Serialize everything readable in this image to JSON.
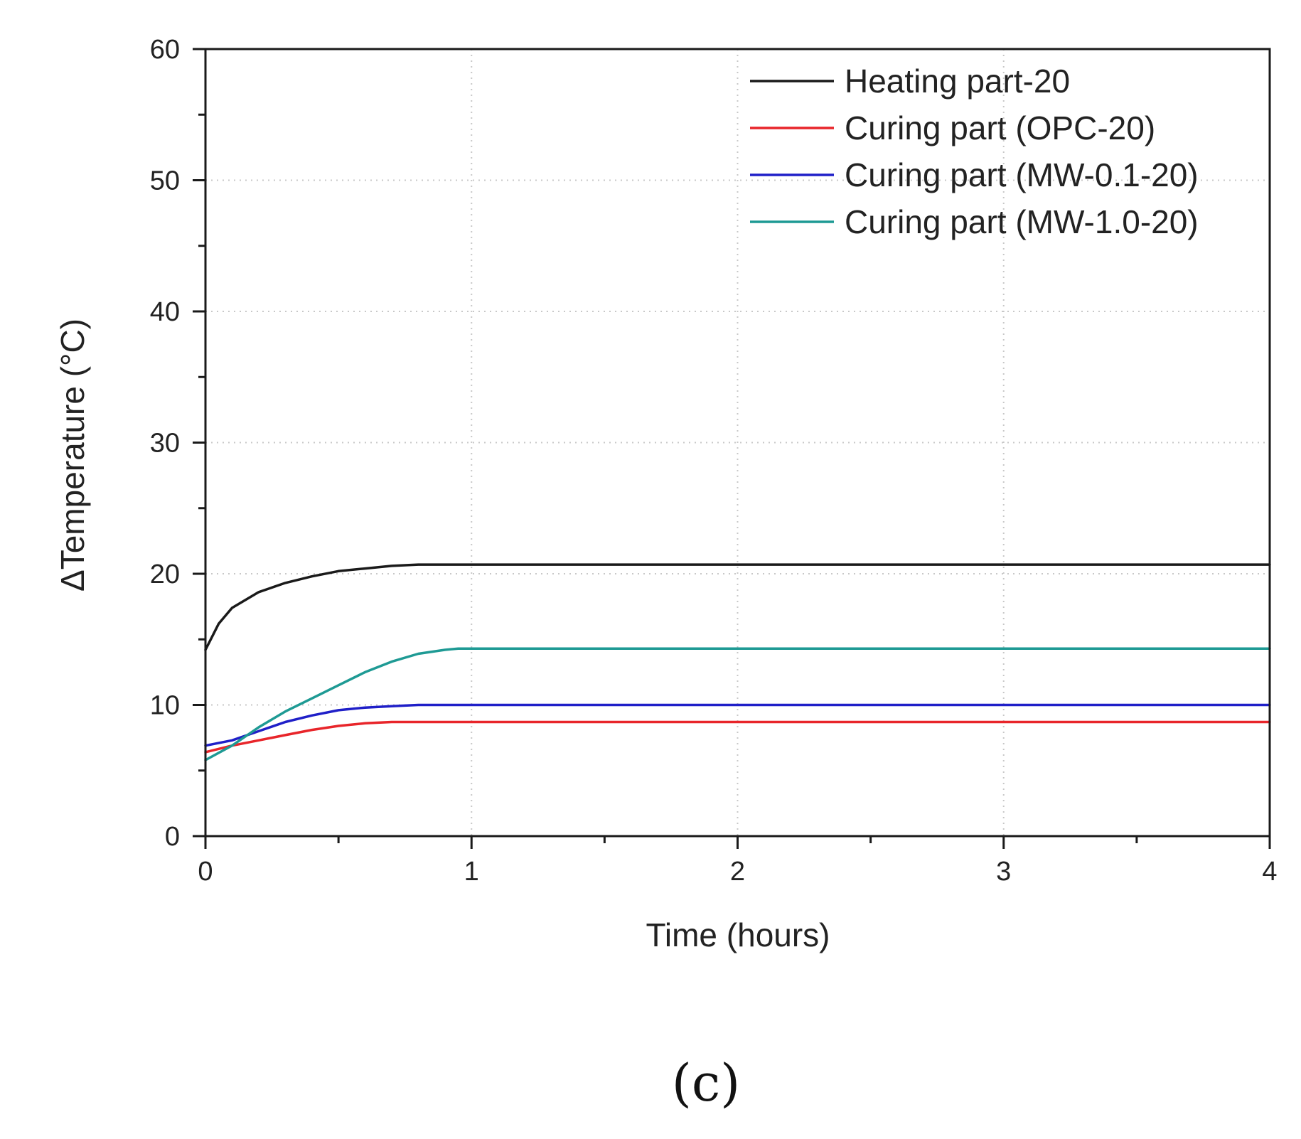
{
  "chart_data": {
    "type": "line",
    "title": "",
    "panel_label": "(c)",
    "xlabel": "Time (hours)",
    "ylabel": "ΔTemperature (°C)",
    "xlim": [
      0,
      4
    ],
    "ylim": [
      0,
      60
    ],
    "xticks": [
      0,
      1,
      2,
      3,
      4
    ],
    "xtick_labels": [
      "0",
      "1",
      "2",
      "3",
      "4"
    ],
    "yticks": [
      0,
      10,
      20,
      30,
      40,
      50,
      60
    ],
    "ytick_labels": [
      "0",
      "10",
      "20",
      "30",
      "40",
      "50",
      "60"
    ],
    "grid": true,
    "legend_position": "top-right",
    "series": [
      {
        "name": "Heating part-20",
        "color": "#1a1a1a",
        "x": [
          0,
          0.05,
          0.1,
          0.2,
          0.3,
          0.4,
          0.5,
          0.6,
          0.7,
          0.8,
          0.9,
          1.0,
          1.5,
          2.0,
          2.5,
          3.0,
          3.5,
          4.0
        ],
        "y": [
          14.2,
          16.2,
          17.4,
          18.6,
          19.3,
          19.8,
          20.2,
          20.4,
          20.6,
          20.7,
          20.7,
          20.7,
          20.7,
          20.7,
          20.7,
          20.7,
          20.7,
          20.7
        ]
      },
      {
        "name": "Curing part (OPC-20)",
        "color": "#e8252a",
        "x": [
          0,
          0.1,
          0.2,
          0.3,
          0.4,
          0.5,
          0.6,
          0.7,
          0.8,
          1.0,
          1.5,
          2.0,
          2.5,
          3.0,
          3.5,
          4.0
        ],
        "y": [
          6.4,
          6.9,
          7.3,
          7.7,
          8.1,
          8.4,
          8.6,
          8.7,
          8.7,
          8.7,
          8.7,
          8.7,
          8.7,
          8.7,
          8.7,
          8.7
        ]
      },
      {
        "name": "Curing part (MW-0.1-20)",
        "color": "#1f1fc8",
        "x": [
          0,
          0.1,
          0.2,
          0.3,
          0.4,
          0.5,
          0.6,
          0.7,
          0.8,
          0.9,
          1.0,
          1.5,
          2.0,
          2.5,
          3.0,
          3.5,
          4.0
        ],
        "y": [
          6.9,
          7.3,
          8.0,
          8.7,
          9.2,
          9.6,
          9.8,
          9.9,
          10.0,
          10.0,
          10.0,
          10.0,
          10.0,
          10.0,
          10.0,
          10.0,
          10.0
        ]
      },
      {
        "name": "Curing part (MW-1.0-20)",
        "color": "#1e9a94",
        "x": [
          0,
          0.1,
          0.2,
          0.3,
          0.4,
          0.5,
          0.6,
          0.7,
          0.8,
          0.9,
          0.95,
          1.0,
          1.5,
          2.0,
          2.5,
          3.0,
          3.5,
          4.0
        ],
        "y": [
          5.8,
          6.9,
          8.3,
          9.5,
          10.5,
          11.5,
          12.5,
          13.3,
          13.9,
          14.2,
          14.3,
          14.3,
          14.3,
          14.3,
          14.3,
          14.3,
          14.3,
          14.3
        ]
      }
    ]
  }
}
